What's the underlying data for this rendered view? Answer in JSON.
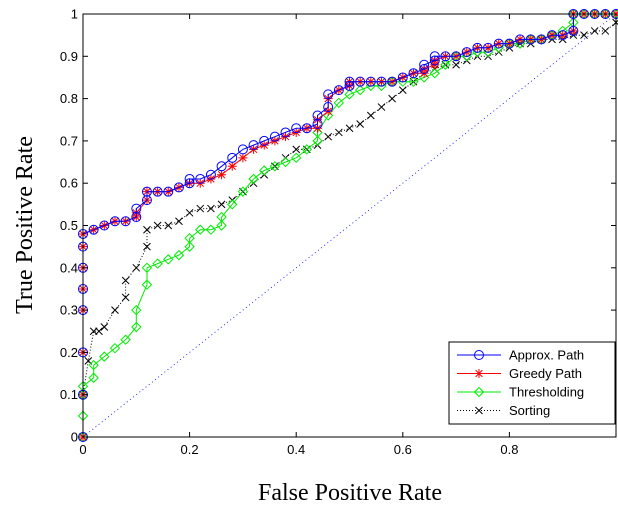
{
  "chart_data": {
    "type": "line",
    "xlabel": "False Positive Rate",
    "ylabel": "True Positive Rate",
    "xlim": [
      0,
      1
    ],
    "ylim": [
      0,
      1
    ],
    "x_ticks": [
      "0",
      "0.2",
      "0.4",
      "0.6",
      "0.8"
    ],
    "y_ticks": [
      "0",
      "0.1",
      "0.2",
      "0.3",
      "0.4",
      "0.5",
      "0.6",
      "0.7",
      "0.8",
      "0.9",
      "1"
    ],
    "grid": false,
    "legend_position": "bottom-right",
    "series": [
      {
        "name": "Approx. Path",
        "color": "#0000ff",
        "marker": "circle",
        "line_style": "solid",
        "x": [
          0,
          0,
          0,
          0,
          0,
          0,
          0,
          0,
          0.02,
          0.04,
          0.06,
          0.08,
          0.1,
          0.1,
          0.12,
          0.12,
          0.14,
          0.16,
          0.18,
          0.2,
          0.2,
          0.22,
          0.24,
          0.26,
          0.28,
          0.3,
          0.32,
          0.34,
          0.36,
          0.38,
          0.4,
          0.42,
          0.44,
          0.44,
          0.46,
          0.46,
          0.48,
          0.5,
          0.5,
          0.52,
          0.54,
          0.56,
          0.58,
          0.6,
          0.62,
          0.64,
          0.64,
          0.66,
          0.66,
          0.68,
          0.7,
          0.72,
          0.74,
          0.76,
          0.78,
          0.8,
          0.82,
          0.84,
          0.86,
          0.88,
          0.9,
          0.92,
          0.92,
          0.94,
          0.96,
          0.98,
          1
        ],
        "y": [
          0,
          0.1,
          0.2,
          0.3,
          0.35,
          0.4,
          0.45,
          0.48,
          0.49,
          0.5,
          0.51,
          0.51,
          0.52,
          0.54,
          0.56,
          0.58,
          0.58,
          0.58,
          0.59,
          0.6,
          0.61,
          0.61,
          0.62,
          0.64,
          0.66,
          0.68,
          0.69,
          0.7,
          0.71,
          0.72,
          0.73,
          0.73,
          0.74,
          0.76,
          0.78,
          0.81,
          0.82,
          0.83,
          0.84,
          0.84,
          0.84,
          0.84,
          0.84,
          0.85,
          0.86,
          0.87,
          0.88,
          0.89,
          0.9,
          0.9,
          0.9,
          0.91,
          0.92,
          0.92,
          0.93,
          0.93,
          0.94,
          0.94,
          0.94,
          0.95,
          0.95,
          0.96,
          1,
          1,
          1,
          1,
          1
        ]
      },
      {
        "name": "Greedy Path",
        "color": "#ff0000",
        "marker": "asterisk",
        "line_style": "solid",
        "x": [
          0,
          0,
          0,
          0,
          0,
          0,
          0,
          0,
          0.02,
          0.04,
          0.06,
          0.08,
          0.1,
          0.1,
          0.12,
          0.12,
          0.14,
          0.16,
          0.18,
          0.2,
          0.22,
          0.24,
          0.26,
          0.28,
          0.3,
          0.32,
          0.34,
          0.36,
          0.38,
          0.4,
          0.42,
          0.44,
          0.44,
          0.46,
          0.46,
          0.48,
          0.5,
          0.5,
          0.52,
          0.54,
          0.56,
          0.58,
          0.6,
          0.62,
          0.64,
          0.64,
          0.66,
          0.66,
          0.68,
          0.7,
          0.72,
          0.74,
          0.76,
          0.78,
          0.8,
          0.82,
          0.84,
          0.86,
          0.88,
          0.9,
          0.92,
          0.92,
          0.94,
          0.96,
          0.98,
          1
        ],
        "y": [
          0,
          0.1,
          0.2,
          0.3,
          0.35,
          0.4,
          0.45,
          0.48,
          0.49,
          0.5,
          0.51,
          0.51,
          0.52,
          0.53,
          0.56,
          0.58,
          0.58,
          0.58,
          0.59,
          0.6,
          0.6,
          0.61,
          0.62,
          0.64,
          0.66,
          0.68,
          0.69,
          0.7,
          0.71,
          0.72,
          0.73,
          0.73,
          0.75,
          0.77,
          0.8,
          0.82,
          0.83,
          0.84,
          0.84,
          0.84,
          0.84,
          0.84,
          0.85,
          0.86,
          0.86,
          0.87,
          0.88,
          0.89,
          0.9,
          0.9,
          0.91,
          0.92,
          0.92,
          0.93,
          0.93,
          0.94,
          0.94,
          0.94,
          0.95,
          0.95,
          0.96,
          1,
          1,
          1,
          1,
          1
        ]
      },
      {
        "name": "Thresholding",
        "color": "#00ee00",
        "marker": "diamond",
        "line_style": "solid",
        "x": [
          0,
          0,
          0,
          0,
          0.02,
          0.02,
          0.04,
          0.06,
          0.08,
          0.1,
          0.1,
          0.12,
          0.12,
          0.14,
          0.16,
          0.18,
          0.2,
          0.2,
          0.22,
          0.24,
          0.26,
          0.26,
          0.28,
          0.3,
          0.32,
          0.34,
          0.36,
          0.38,
          0.4,
          0.42,
          0.44,
          0.44,
          0.46,
          0.48,
          0.5,
          0.52,
          0.54,
          0.56,
          0.58,
          0.6,
          0.62,
          0.64,
          0.66,
          0.68,
          0.7,
          0.72,
          0.74,
          0.76,
          0.78,
          0.8,
          0.82,
          0.84,
          0.86,
          0.88,
          0.9,
          0.92,
          0.92,
          0.94,
          0.96,
          0.98,
          1
        ],
        "y": [
          0,
          0.05,
          0.1,
          0.12,
          0.14,
          0.17,
          0.19,
          0.21,
          0.23,
          0.26,
          0.3,
          0.36,
          0.4,
          0.41,
          0.42,
          0.43,
          0.45,
          0.47,
          0.49,
          0.49,
          0.5,
          0.52,
          0.55,
          0.58,
          0.61,
          0.63,
          0.64,
          0.65,
          0.66,
          0.68,
          0.7,
          0.72,
          0.76,
          0.79,
          0.81,
          0.82,
          0.83,
          0.83,
          0.84,
          0.84,
          0.84,
          0.85,
          0.86,
          0.88,
          0.9,
          0.9,
          0.91,
          0.91,
          0.92,
          0.93,
          0.93,
          0.94,
          0.94,
          0.95,
          0.96,
          0.98,
          1,
          1,
          1,
          1,
          1
        ]
      },
      {
        "name": "Sorting",
        "color": "#000000",
        "marker": "x",
        "line_style": "dotted",
        "x": [
          0,
          0,
          0.01,
          0.02,
          0.03,
          0.04,
          0.06,
          0.08,
          0.08,
          0.1,
          0.12,
          0.12,
          0.14,
          0.16,
          0.18,
          0.2,
          0.22,
          0.24,
          0.26,
          0.28,
          0.3,
          0.32,
          0.34,
          0.36,
          0.38,
          0.4,
          0.42,
          0.44,
          0.46,
          0.48,
          0.5,
          0.52,
          0.54,
          0.56,
          0.58,
          0.6,
          0.62,
          0.64,
          0.66,
          0.68,
          0.7,
          0.72,
          0.74,
          0.76,
          0.78,
          0.8,
          0.82,
          0.84,
          0.86,
          0.88,
          0.9,
          0.92,
          0.94,
          0.96,
          0.98,
          1
        ],
        "y": [
          0,
          0.1,
          0.18,
          0.25,
          0.25,
          0.26,
          0.3,
          0.33,
          0.37,
          0.4,
          0.45,
          0.49,
          0.5,
          0.5,
          0.51,
          0.53,
          0.54,
          0.54,
          0.55,
          0.56,
          0.58,
          0.6,
          0.62,
          0.64,
          0.66,
          0.68,
          0.68,
          0.69,
          0.71,
          0.72,
          0.73,
          0.74,
          0.76,
          0.78,
          0.8,
          0.82,
          0.84,
          0.86,
          0.87,
          0.88,
          0.88,
          0.89,
          0.9,
          0.9,
          0.91,
          0.92,
          0.93,
          0.93,
          0.94,
          0.94,
          0.94,
          0.95,
          0.95,
          0.96,
          0.96,
          0.98
        ]
      }
    ]
  }
}
